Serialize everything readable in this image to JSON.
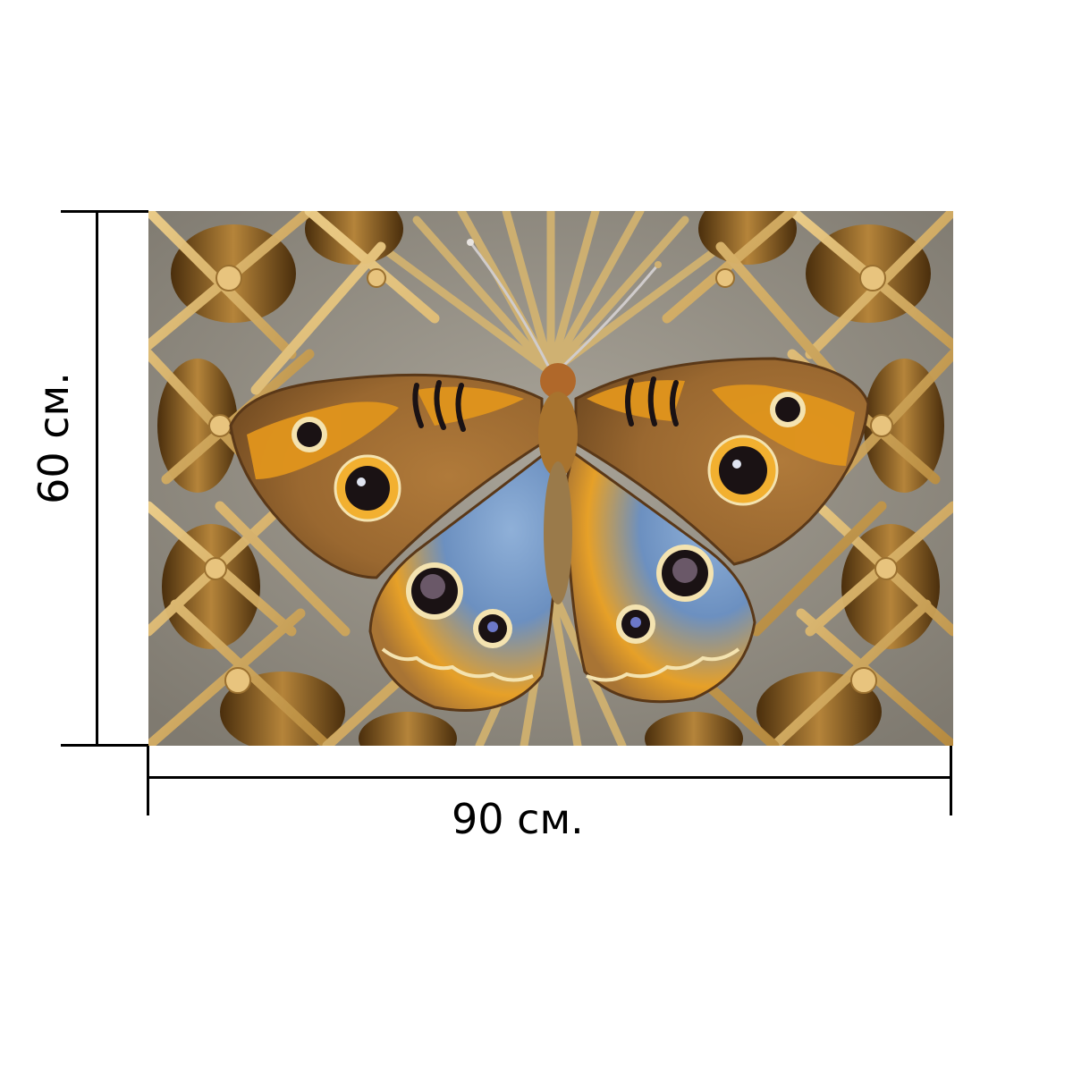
{
  "product": {
    "width_label": "90 см.",
    "height_label": "60 см.",
    "artwork": {
      "subject": "butterfly-on-woven-mandala",
      "colors": {
        "background_gray": "#8e8a80",
        "straw_light": "#d9b56a",
        "straw_dark": "#6e4a18",
        "wing_orange": "#e0951c",
        "wing_brown": "#8a5a28",
        "wing_blue": "#6c90c0",
        "eyespot_dark": "#1a1214"
      }
    }
  }
}
